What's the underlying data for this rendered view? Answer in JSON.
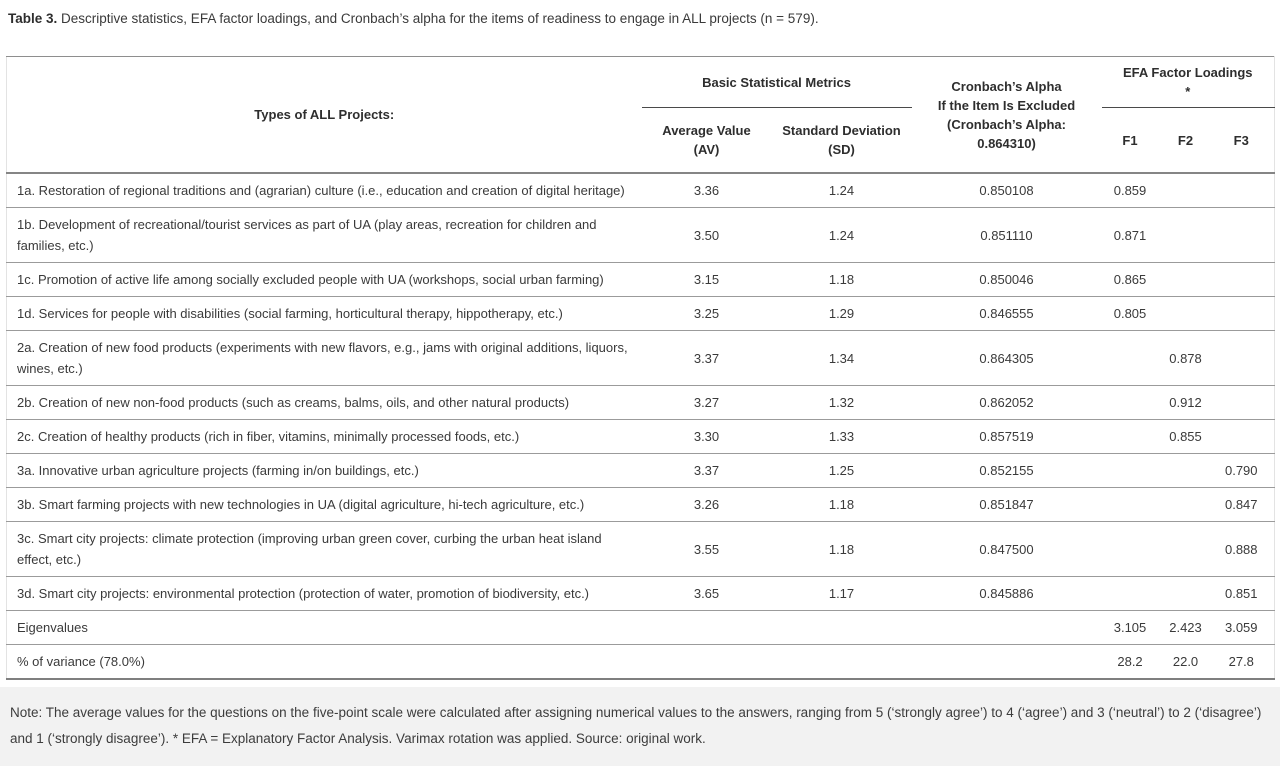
{
  "caption": {
    "prefix": "Table 3.",
    "text": " Descriptive statistics, EFA factor loadings, and Cronbach’s alpha for the items of readiness to engage in ALL projects (n = 579)."
  },
  "table": {
    "headers": {
      "projects": "Types of ALL Projects:",
      "group_basic": "Basic Statistical Metrics",
      "av": "Average Value\n(AV)",
      "sd": "Standard Deviation\n(SD)",
      "alpha": "Cronbach’s Alpha\nIf the Item Is Excluded\n(Cronbach’s Alpha:\n0.864310)",
      "group_efa": "EFA Factor Loadings\n*",
      "f1": "F1",
      "f2": "F2",
      "f3": "F3"
    },
    "rows": [
      {
        "label": "1a. Restoration of regional traditions and (agrarian) culture (i.e., education and creation of digital heritage)",
        "av": "3.36",
        "sd": "1.24",
        "alpha": "0.850108",
        "f1": "0.859",
        "f2": "",
        "f3": ""
      },
      {
        "label": "1b. Development of recreational/tourist services as part of UA (play areas, recreation for children and families, etc.)",
        "av": "3.50",
        "sd": "1.24",
        "alpha": "0.851110",
        "f1": "0.871",
        "f2": "",
        "f3": ""
      },
      {
        "label": "1c. Promotion of active life among socially excluded people with UA (workshops, social urban farming)",
        "av": "3.15",
        "sd": "1.18",
        "alpha": "0.850046",
        "f1": "0.865",
        "f2": "",
        "f3": ""
      },
      {
        "label": "1d. Services for people with disabilities (social farming, horticultural therapy, hippotherapy, etc.)",
        "av": "3.25",
        "sd": "1.29",
        "alpha": "0.846555",
        "f1": "0.805",
        "f2": "",
        "f3": ""
      },
      {
        "label": "2a. Creation of new food products (experiments with new flavors, e.g., jams with original additions, liquors, wines, etc.)",
        "av": "3.37",
        "sd": "1.34",
        "alpha": "0.864305",
        "f1": "",
        "f2": "0.878",
        "f3": ""
      },
      {
        "label": "2b. Creation of new non-food products (such as creams, balms, oils, and other natural products)",
        "av": "3.27",
        "sd": "1.32",
        "alpha": "0.862052",
        "f1": "",
        "f2": "0.912",
        "f3": ""
      },
      {
        "label": "2c. Creation of healthy products (rich in fiber, vitamins, minimally processed foods, etc.)",
        "av": "3.30",
        "sd": "1.33",
        "alpha": "0.857519",
        "f1": "",
        "f2": "0.855",
        "f3": ""
      },
      {
        "label": "3a. Innovative urban agriculture projects (farming in/on buildings, etc.)",
        "av": "3.37",
        "sd": "1.25",
        "alpha": "0.852155",
        "f1": "",
        "f2": "",
        "f3": "0.790"
      },
      {
        "label": "3b. Smart farming projects with new technologies in UA (digital agriculture, hi-tech agriculture, etc.)",
        "av": "3.26",
        "sd": "1.18",
        "alpha": "0.851847",
        "f1": "",
        "f2": "",
        "f3": "0.847"
      },
      {
        "label": "3c. Smart city projects: climate protection (improving urban green cover, curbing the urban heat island effect, etc.)",
        "av": "3.55",
        "sd": "1.18",
        "alpha": "0.847500",
        "f1": "",
        "f2": "",
        "f3": "0.888"
      },
      {
        "label": "3d. Smart city projects: environmental protection (protection of water, promotion of biodiversity, etc.)",
        "av": "3.65",
        "sd": "1.17",
        "alpha": "0.845886",
        "f1": "",
        "f2": "",
        "f3": "0.851"
      },
      {
        "label": "Eigenvalues",
        "av": "",
        "sd": "",
        "alpha": "",
        "f1": "3.105",
        "f2": "2.423",
        "f3": "3.059"
      },
      {
        "label": "% of variance (78.0%)",
        "av": "",
        "sd": "",
        "alpha": "",
        "f1": "28.2",
        "f2": "22.0",
        "f3": "27.8"
      }
    ]
  },
  "note": "Note: The average values for the questions on the five-point scale were calculated after assigning numerical values to the answers, ranging from 5 (‘strongly agree’) to 4 (‘agree’) and 3 (‘neutral’) to 2 (‘disagree’) and 1 (‘strongly disagree’). * EFA = Explanatory Factor Analysis. Varimax rotation was applied. Source: original work."
}
